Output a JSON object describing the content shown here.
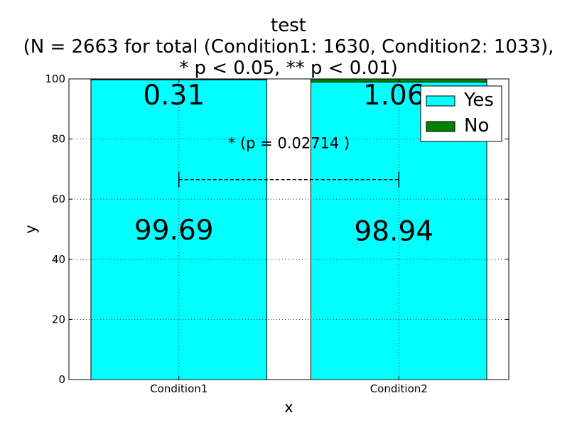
{
  "chart_data": {
    "type": "bar",
    "stacked": true,
    "title_lines": [
      "test",
      "(N = 2663 for total (Condition1: 1630, Condition2: 1033),",
      "* p < 0.05, ** p < 0.01)"
    ],
    "xlabel": "x",
    "ylabel": "y",
    "categories": [
      "Condition1",
      "Condition2"
    ],
    "series": [
      {
        "name": "Yes",
        "values": [
          99.69,
          98.94
        ],
        "color": "#00ffff"
      },
      {
        "name": "No",
        "values": [
          0.31,
          1.06
        ],
        "color": "#008000"
      }
    ],
    "bar_value_labels": {
      "yes": [
        "99.69",
        "98.94"
      ],
      "no": [
        "0.31",
        "1.06"
      ]
    },
    "ylim": [
      0,
      100
    ],
    "yticks": [
      0,
      20,
      40,
      60,
      80,
      100
    ],
    "ytick_labels": [
      "0",
      "20",
      "40",
      "60",
      "80",
      "100"
    ],
    "grid": true,
    "legend_position": "top-right",
    "significance": {
      "text": "* (p = 0.02714 )",
      "from": "Condition1",
      "to": "Condition2",
      "y": 66.5,
      "text_y": 77
    }
  }
}
